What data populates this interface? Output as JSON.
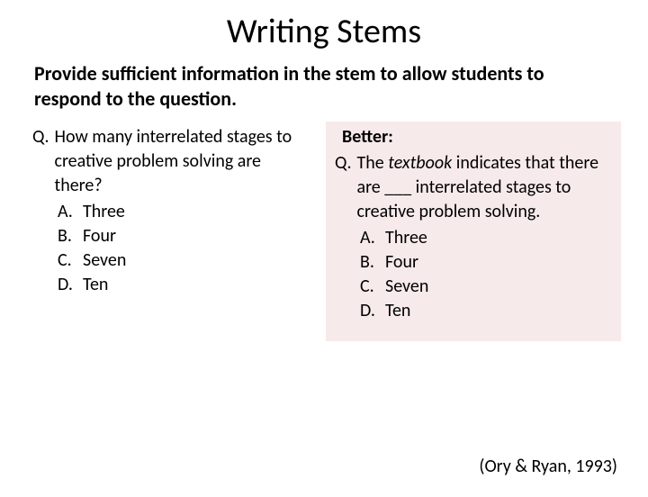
{
  "title": "Writing Stems",
  "subtitle": "Provide sufficient information in the stem to allow students to respond to the question.",
  "left": {
    "q_marker": "Q.",
    "question": "How many interrelated stages to creative problem solving are there?",
    "options": [
      {
        "letter": "A.",
        "text": "Three"
      },
      {
        "letter": "B.",
        "text": "Four"
      },
      {
        "letter": "C.",
        "text": "Seven"
      },
      {
        "letter": "D.",
        "text": "Ten"
      }
    ]
  },
  "right": {
    "better_label": "Better:",
    "q_marker": "Q.",
    "q_part1": "The ",
    "q_italic": "textbook",
    "q_part2": " indicates that there are ___ interrelated stages to creative problem solving.",
    "options": [
      {
        "letter": "A.",
        "text": "Three"
      },
      {
        "letter": "B.",
        "text": "Four"
      },
      {
        "letter": "C.",
        "text": "Seven"
      },
      {
        "letter": "D.",
        "text": "Ten"
      }
    ],
    "background_color": "#f7eaea"
  },
  "citation": "(Ory & Ryan, 1993)",
  "colors": {
    "text": "#000000",
    "page_bg": "#ffffff"
  }
}
